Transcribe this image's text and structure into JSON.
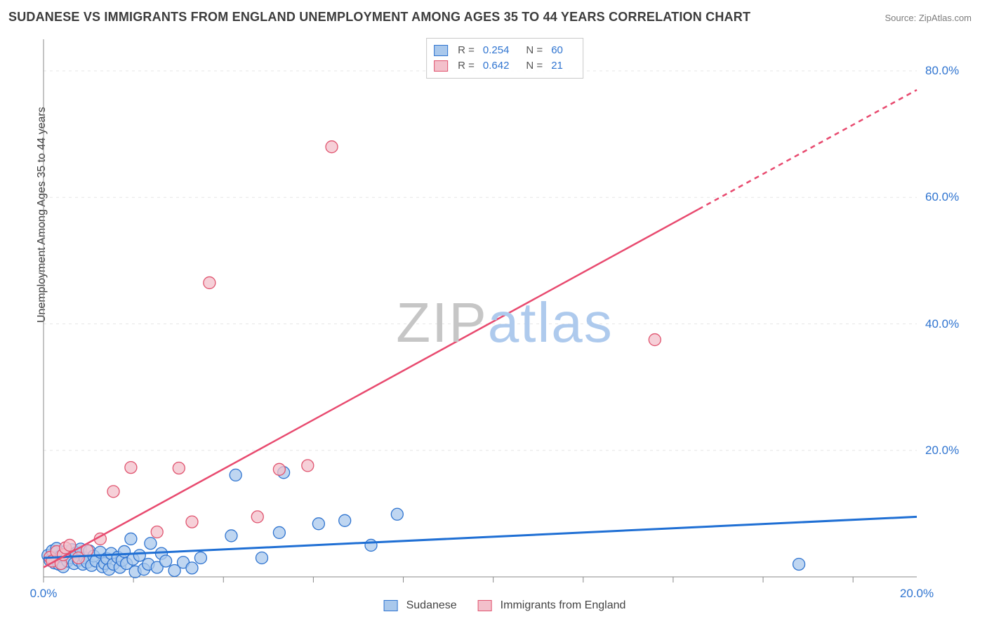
{
  "title": "SUDANESE VS IMMIGRANTS FROM ENGLAND UNEMPLOYMENT AMONG AGES 35 TO 44 YEARS CORRELATION CHART",
  "source": "Source: ZipAtlas.com",
  "ylabel": "Unemployment Among Ages 35 to 44 years",
  "watermark": {
    "part1": "ZIP",
    "part2": "atlas"
  },
  "chart": {
    "type": "scatter-with-regression",
    "background_color": "#ffffff",
    "grid_color": "#e6e6e6",
    "axis_color": "#888888",
    "tick_color": "#888888",
    "tick_label_color": "#2f74d0",
    "xlim": [
      0,
      20
    ],
    "ylim": [
      0,
      85
    ],
    "xtick_labels": [
      "0.0%",
      "20.0%"
    ],
    "xtick_values": [
      0,
      20
    ],
    "xtick_minor": [
      0,
      2.06,
      4.12,
      6.18,
      8.24,
      10.3,
      12.36,
      14.42,
      16.48,
      18.54
    ],
    "ytick_labels": [
      "20.0%",
      "40.0%",
      "60.0%",
      "80.0%"
    ],
    "ytick_values": [
      20,
      40,
      60,
      80
    ],
    "series": [
      {
        "key": "sudanese",
        "label": "Sudanese",
        "fill": "#a9c8ec",
        "stroke": "#2f74d0",
        "line_color": "#1f6fd4",
        "line_width": 3,
        "R": "0.254",
        "N": "60",
        "regression": {
          "x1": 0,
          "y1": 3.0,
          "x2": 20,
          "y2": 9.5,
          "dash_from_x": null
        },
        "points": [
          [
            0.1,
            3.4
          ],
          [
            0.15,
            2.6
          ],
          [
            0.2,
            4.1
          ],
          [
            0.25,
            2.2
          ],
          [
            0.3,
            3.1
          ],
          [
            0.3,
            4.5
          ],
          [
            0.35,
            2.0
          ],
          [
            0.4,
            3.3
          ],
          [
            0.45,
            1.6
          ],
          [
            0.5,
            4.0
          ],
          [
            0.55,
            2.5
          ],
          [
            0.6,
            3.0
          ],
          [
            0.65,
            4.3
          ],
          [
            0.7,
            2.1
          ],
          [
            0.75,
            3.8
          ],
          [
            0.8,
            2.6
          ],
          [
            0.85,
            4.4
          ],
          [
            0.9,
            2.0
          ],
          [
            0.95,
            3.0
          ],
          [
            1.0,
            2.3
          ],
          [
            1.05,
            4.1
          ],
          [
            1.1,
            1.8
          ],
          [
            1.15,
            3.3
          ],
          [
            1.2,
            2.5
          ],
          [
            1.3,
            3.9
          ],
          [
            1.35,
            1.6
          ],
          [
            1.4,
            2.1
          ],
          [
            1.45,
            2.9
          ],
          [
            1.5,
            1.2
          ],
          [
            1.55,
            3.7
          ],
          [
            1.6,
            2.0
          ],
          [
            1.7,
            3.1
          ],
          [
            1.75,
            1.5
          ],
          [
            1.8,
            2.6
          ],
          [
            1.85,
            4.0
          ],
          [
            1.9,
            2.1
          ],
          [
            2.0,
            6.0
          ],
          [
            2.05,
            2.8
          ],
          [
            2.1,
            0.8
          ],
          [
            2.2,
            3.4
          ],
          [
            2.3,
            1.2
          ],
          [
            2.4,
            2.0
          ],
          [
            2.45,
            5.3
          ],
          [
            2.6,
            1.5
          ],
          [
            2.7,
            3.7
          ],
          [
            2.8,
            2.5
          ],
          [
            3.0,
            1.0
          ],
          [
            3.2,
            2.3
          ],
          [
            3.4,
            1.4
          ],
          [
            3.6,
            3.0
          ],
          [
            4.3,
            6.5
          ],
          [
            4.4,
            16.1
          ],
          [
            5.0,
            3.0
          ],
          [
            5.4,
            7.0
          ],
          [
            5.5,
            16.5
          ],
          [
            6.3,
            8.4
          ],
          [
            6.9,
            8.9
          ],
          [
            7.5,
            5.0
          ],
          [
            8.1,
            9.9
          ],
          [
            17.3,
            2.0
          ]
        ]
      },
      {
        "key": "england",
        "label": "Immigrants from England",
        "fill": "#f3c0cb",
        "stroke": "#e0546f",
        "line_color": "#e84a6f",
        "line_width": 2.5,
        "R": "0.642",
        "N": "21",
        "regression": {
          "x1": 0,
          "y1": 1.5,
          "x2": 20,
          "y2": 77.0,
          "dash_from_x": 15.0
        },
        "points": [
          [
            0.15,
            3.1
          ],
          [
            0.2,
            2.5
          ],
          [
            0.3,
            4.0
          ],
          [
            0.4,
            2.1
          ],
          [
            0.45,
            3.5
          ],
          [
            0.5,
            4.6
          ],
          [
            0.6,
            5.0
          ],
          [
            0.8,
            3.0
          ],
          [
            1.0,
            4.2
          ],
          [
            1.3,
            6.0
          ],
          [
            1.6,
            13.5
          ],
          [
            2.0,
            17.3
          ],
          [
            2.6,
            7.1
          ],
          [
            3.1,
            17.2
          ],
          [
            3.4,
            8.7
          ],
          [
            3.8,
            46.5
          ],
          [
            4.9,
            9.5
          ],
          [
            5.4,
            17.0
          ],
          [
            6.05,
            17.6
          ],
          [
            6.6,
            68.0
          ],
          [
            14.0,
            37.5
          ]
        ]
      }
    ]
  },
  "legend_bottom": [
    {
      "key": "sudanese",
      "label": "Sudanese"
    },
    {
      "key": "england",
      "label": "Immigrants from England"
    }
  ]
}
